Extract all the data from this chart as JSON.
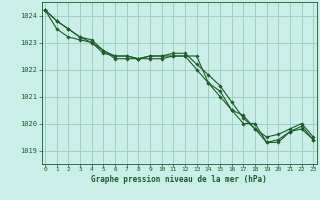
{
  "title": "Graphe pression niveau de la mer (hPa)",
  "background_color": "#cceee8",
  "plot_bg_color": "#cceee8",
  "grid_color": "#99ccbb",
  "line_color": "#1a5c2a",
  "marker_color": "#1a5c2a",
  "xlim": [
    -0.3,
    23.3
  ],
  "ylim": [
    1018.5,
    1024.5
  ],
  "yticks": [
    1019,
    1020,
    1021,
    1022,
    1023,
    1024
  ],
  "xticks": [
    0,
    1,
    2,
    3,
    4,
    5,
    6,
    7,
    8,
    9,
    10,
    11,
    12,
    13,
    14,
    15,
    16,
    17,
    18,
    19,
    20,
    21,
    22,
    23
  ],
  "series": [
    [
      1024.2,
      1023.8,
      1023.5,
      1023.2,
      1023.1,
      1022.7,
      1022.5,
      1022.5,
      1022.4,
      1022.4,
      1022.4,
      1022.5,
      1022.5,
      1022.0,
      1021.5,
      1021.2,
      1020.5,
      1020.3,
      1019.8,
      1019.3,
      1019.3,
      1019.7,
      1019.8,
      1019.4
    ],
    [
      1024.2,
      1023.8,
      1023.5,
      1023.2,
      1023.0,
      1022.6,
      1022.5,
      1022.5,
      1022.4,
      1022.5,
      1022.5,
      1022.6,
      1022.6,
      1022.2,
      1021.8,
      1021.4,
      1020.8,
      1020.2,
      1019.8,
      1019.5,
      1019.6,
      1019.8,
      1020.0,
      1019.5
    ],
    [
      1024.2,
      1023.5,
      1023.2,
      1023.1,
      1023.0,
      1022.7,
      1022.4,
      1022.4,
      1022.4,
      1022.5,
      1022.5,
      1022.5,
      1022.5,
      1022.5,
      1021.5,
      1021.0,
      1020.5,
      1020.0,
      1020.0,
      1019.3,
      1019.4,
      1019.7,
      1019.9,
      1019.4
    ]
  ]
}
